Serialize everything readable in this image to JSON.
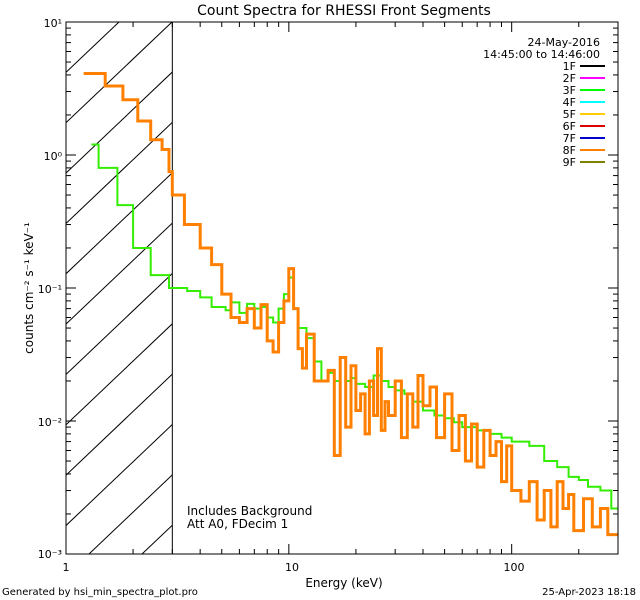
{
  "chart_data": {
    "type": "line",
    "title": "Count Spectra for RHESSI Front Segments",
    "xlabel": "Energy (keV)",
    "ylabel": "counts cm⁻² s⁻¹ keV⁻¹",
    "xscale": "log",
    "yscale": "log",
    "xlim": [
      1,
      300
    ],
    "ylim": [
      0.001,
      10
    ],
    "x_ticks": [
      {
        "value": 1,
        "label": "1"
      },
      {
        "value": 10,
        "label": "10"
      },
      {
        "value": 100,
        "label": "100"
      }
    ],
    "y_ticks": [
      {
        "value": 10,
        "label": "10¹"
      },
      {
        "value": 1,
        "label": "10⁰"
      },
      {
        "value": 0.1,
        "label": "10⁻¹"
      },
      {
        "value": 0.01,
        "label": "10⁻²"
      },
      {
        "value": 0.001,
        "label": "10⁻³"
      }
    ],
    "date": "24-May-2016",
    "time_range": "14:45:00 to 14:46:00",
    "legend_position": "top-right",
    "legend": [
      {
        "label": "1F",
        "color": "#000000"
      },
      {
        "label": "2F",
        "color": "#ff00ff"
      },
      {
        "label": "3F",
        "color": "#00ff00"
      },
      {
        "label": "4F",
        "color": "#00ffff"
      },
      {
        "label": "5F",
        "color": "#ffcc00"
      },
      {
        "label": "6F",
        "color": "#dd0000"
      },
      {
        "label": "7F",
        "color": "#0000cc"
      },
      {
        "label": "8F",
        "color": "#ff8000"
      },
      {
        "label": "9F",
        "color": "#808000"
      }
    ],
    "threshold_energy": 3,
    "shaded_region": [
      1,
      3
    ],
    "annotations": [
      "Includes Background",
      "Att A0, FDecim 1"
    ],
    "series": [
      {
        "name": "3F",
        "color": "#33ee00",
        "width": 2,
        "points": [
          [
            1.3,
            1.2
          ],
          [
            1.4,
            0.8
          ],
          [
            1.7,
            0.42
          ],
          [
            2.0,
            0.2
          ],
          [
            2.4,
            0.125
          ],
          [
            2.9,
            0.1
          ],
          [
            3.5,
            0.095
          ],
          [
            4.0,
            0.085
          ],
          [
            4.5,
            0.072
          ],
          [
            5.2,
            0.068
          ],
          [
            5.5,
            0.078
          ],
          [
            6.0,
            0.065
          ],
          [
            6.5,
            0.076
          ],
          [
            7.0,
            0.07
          ],
          [
            7.5,
            0.072
          ],
          [
            8.0,
            0.06
          ],
          [
            8.5,
            0.055
          ],
          [
            9.0,
            0.07
          ],
          [
            9.5,
            0.09
          ],
          [
            10.0,
            0.12
          ],
          [
            10.5,
            0.07
          ],
          [
            11.0,
            0.05
          ],
          [
            12.0,
            0.042
          ],
          [
            13.0,
            0.028
          ],
          [
            14.0,
            0.02
          ],
          [
            15.0,
            0.023
          ],
          [
            16.0,
            0.02
          ],
          [
            17.0,
            0.03
          ],
          [
            18.0,
            0.02
          ],
          [
            19.0,
            0.021
          ],
          [
            20.0,
            0.019
          ],
          [
            22.0,
            0.018
          ],
          [
            24.0,
            0.022
          ],
          [
            26.0,
            0.02
          ],
          [
            28.0,
            0.018
          ],
          [
            30.0,
            0.017
          ],
          [
            33.0,
            0.016
          ],
          [
            36.0,
            0.014
          ],
          [
            40.0,
            0.012
          ],
          [
            45.0,
            0.011
          ],
          [
            50.0,
            0.0105
          ],
          [
            55.0,
            0.0098
          ],
          [
            60.0,
            0.009
          ],
          [
            70.0,
            0.0085
          ],
          [
            80.0,
            0.008
          ],
          [
            90.0,
            0.0075
          ],
          [
            100.0,
            0.007
          ],
          [
            120.0,
            0.0065
          ],
          [
            140.0,
            0.005
          ],
          [
            160.0,
            0.0045
          ],
          [
            180.0,
            0.0038
          ],
          [
            200.0,
            0.0036
          ],
          [
            220.0,
            0.0032
          ],
          [
            250.0,
            0.003
          ],
          [
            280.0,
            0.0022
          ],
          [
            300.0,
            0.0022
          ]
        ]
      },
      {
        "name": "8F",
        "color": "#ff8000",
        "width": 3,
        "points": [
          [
            1.2,
            4.1
          ],
          [
            1.5,
            3.3
          ],
          [
            1.8,
            2.6
          ],
          [
            2.1,
            1.8
          ],
          [
            2.4,
            1.3
          ],
          [
            2.7,
            1.1
          ],
          [
            2.9,
            0.75
          ],
          [
            3.0,
            0.5
          ],
          [
            3.4,
            0.3
          ],
          [
            4.0,
            0.2
          ],
          [
            4.5,
            0.15
          ],
          [
            5.0,
            0.09
          ],
          [
            5.5,
            0.06
          ],
          [
            6.0,
            0.055
          ],
          [
            6.5,
            0.07
          ],
          [
            7.0,
            0.05
          ],
          [
            7.5,
            0.075
          ],
          [
            8.0,
            0.04
          ],
          [
            8.5,
            0.033
          ],
          [
            9.0,
            0.055
          ],
          [
            9.5,
            0.08
          ],
          [
            10.0,
            0.14
          ],
          [
            10.5,
            0.07
          ],
          [
            11.0,
            0.035
          ],
          [
            11.5,
            0.025
          ],
          [
            12.0,
            0.045
          ],
          [
            13.0,
            0.02
          ],
          [
            14.0,
            0.02
          ],
          [
            15.0,
            0.024
          ],
          [
            16.0,
            0.0055
          ],
          [
            17.0,
            0.03
          ],
          [
            18.0,
            0.009
          ],
          [
            19.0,
            0.026
          ],
          [
            20.0,
            0.012
          ],
          [
            21.0,
            0.016
          ],
          [
            22.0,
            0.008
          ],
          [
            23.0,
            0.02
          ],
          [
            24.0,
            0.011
          ],
          [
            25.0,
            0.035
          ],
          [
            26.0,
            0.0085
          ],
          [
            27.0,
            0.014
          ],
          [
            28.0,
            0.011
          ],
          [
            30.0,
            0.02
          ],
          [
            32.0,
            0.0075
          ],
          [
            34.0,
            0.016
          ],
          [
            36.0,
            0.009
          ],
          [
            38.0,
            0.022
          ],
          [
            40.0,
            0.013
          ],
          [
            43.0,
            0.018
          ],
          [
            46.0,
            0.0075
          ],
          [
            50.0,
            0.016
          ],
          [
            54.0,
            0.006
          ],
          [
            58.0,
            0.011
          ],
          [
            62.0,
            0.005
          ],
          [
            66.0,
            0.0095
          ],
          [
            70.0,
            0.0045
          ],
          [
            75.0,
            0.0085
          ],
          [
            80.0,
            0.0055
          ],
          [
            85.0,
            0.007
          ],
          [
            90.0,
            0.0035
          ],
          [
            95.0,
            0.0065
          ],
          [
            100.0,
            0.003
          ],
          [
            110.0,
            0.0025
          ],
          [
            120.0,
            0.0035
          ],
          [
            130.0,
            0.0018
          ],
          [
            140.0,
            0.003
          ],
          [
            150.0,
            0.0016
          ],
          [
            160.0,
            0.0035
          ],
          [
            170.0,
            0.0022
          ],
          [
            180.0,
            0.0028
          ],
          [
            190.0,
            0.0015
          ],
          [
            210.0,
            0.0026
          ],
          [
            230.0,
            0.0016
          ],
          [
            250.0,
            0.0022
          ],
          [
            270.0,
            0.0014
          ],
          [
            300.0,
            0.0014
          ]
        ]
      }
    ]
  },
  "footer": {
    "left": "Generated by hsi_min_spectra_plot.pro",
    "right": "25-Apr-2023 18:18"
  }
}
